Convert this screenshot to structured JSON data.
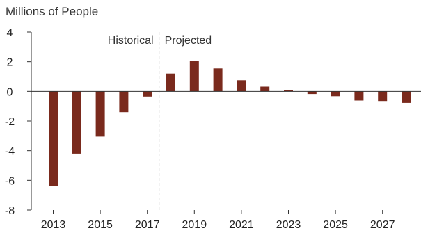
{
  "chart_data": {
    "type": "bar",
    "ylabel": "Millions of People",
    "ylim": [
      -8,
      4
    ],
    "yticks": [
      4,
      2,
      0,
      -2,
      -4,
      -6,
      -8
    ],
    "categories": [
      "2013",
      "2014",
      "2015",
      "2016",
      "2017",
      "2018",
      "2019",
      "2020",
      "2021",
      "2022",
      "2023",
      "2024",
      "2025",
      "2026",
      "2027",
      "2028"
    ],
    "xtick_labels": [
      "2013",
      "2015",
      "2017",
      "2019",
      "2021",
      "2023",
      "2025",
      "2027"
    ],
    "values": [
      -6.4,
      -4.2,
      -3.05,
      -1.4,
      -0.35,
      1.2,
      2.05,
      1.55,
      0.75,
      0.32,
      0.08,
      -0.18,
      -0.33,
      -0.62,
      -0.65,
      -0.78
    ],
    "bar_color": "#7a2a1d",
    "annotations": {
      "left": "Historical",
      "right": "Projected",
      "divider_between": [
        "2017",
        "2018"
      ]
    }
  }
}
